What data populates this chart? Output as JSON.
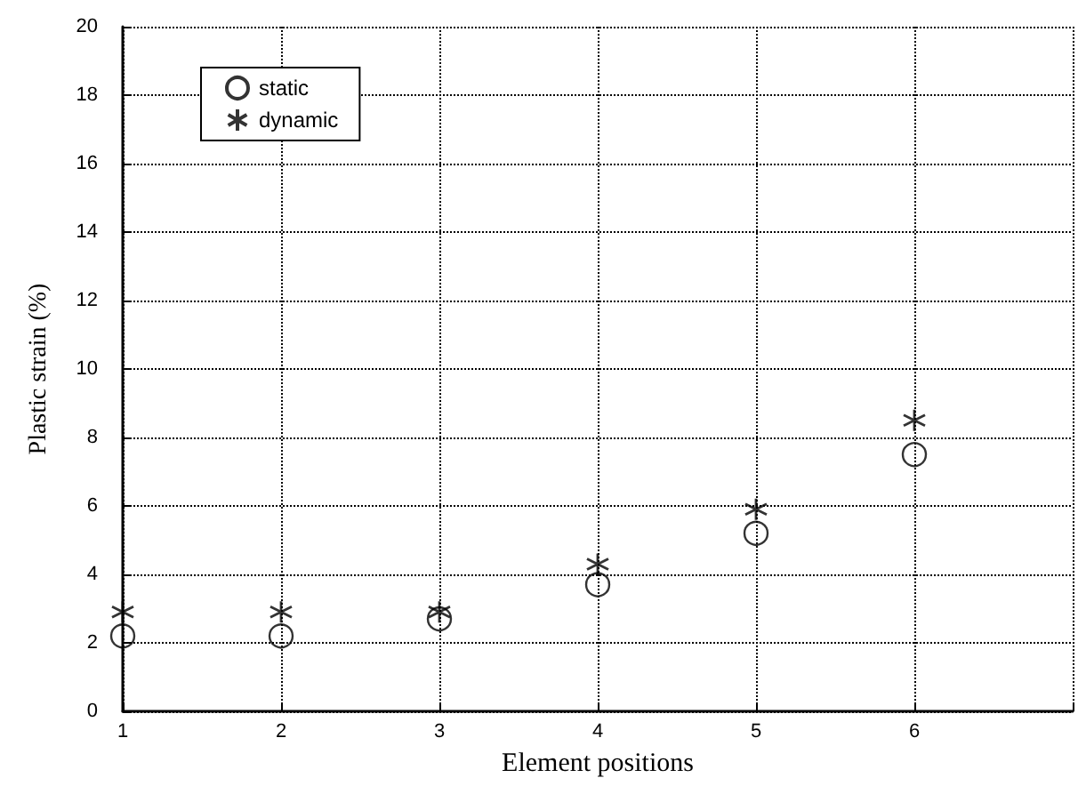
{
  "chart_data": {
    "type": "scatter",
    "xlabel": "Element positions",
    "ylabel": "Plastic strain (%)",
    "x": [
      1,
      2,
      3,
      4,
      5,
      6
    ],
    "series": [
      {
        "name": "static",
        "color": "#000000",
        "marker": "circle",
        "values": [
          2.2,
          2.2,
          2.7,
          3.7,
          5.2,
          7.5
        ]
      },
      {
        "name": "dynamic",
        "color": "#000000",
        "marker": "cross",
        "values": [
          2.9,
          2.9,
          2.9,
          4.3,
          5.9,
          8.5
        ]
      }
    ],
    "xlim": [
      1,
      7
    ],
    "xticks": [
      1,
      2,
      3,
      4,
      5,
      6,
      {
        "value": 7,
        "label": null
      }
    ],
    "ylim": [
      0,
      20
    ],
    "yticks": [
      0,
      2,
      4,
      6,
      8,
      10,
      12,
      14,
      16,
      18,
      20
    ],
    "grid": true,
    "legend": "top left"
  }
}
